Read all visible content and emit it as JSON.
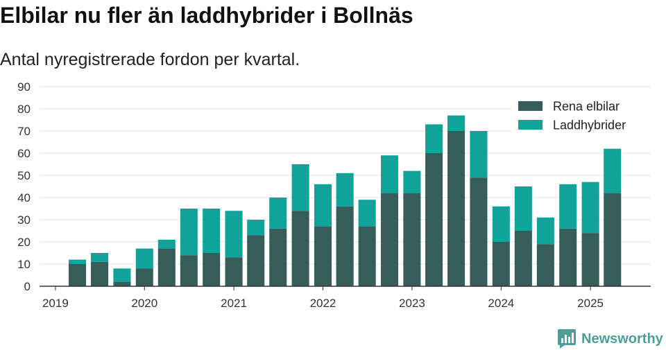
{
  "chart_data": {
    "type": "bar",
    "stacked": true,
    "title": "Elbilar nu fler än laddhybrider i Bollnäs",
    "subtitle": "Antal nyregistrerade fordon per kvartal.",
    "x": [
      "2019-04-01",
      "2019-07-01",
      "2019-10-01",
      "2020-01-01",
      "2020-04-01",
      "2020-07-01",
      "2020-10-01",
      "2021-01-01",
      "2021-04-01",
      "2021-07-01",
      "2021-10-01",
      "2022-01-01",
      "2022-04-01",
      "2022-07-01",
      "2022-10-01",
      "2023-01-01",
      "2023-04-01",
      "2023-07-01",
      "2023-10-01",
      "2024-01-01",
      "2024-04-01",
      "2024-07-01",
      "2024-10-01",
      "2025-01-01",
      "2025-04-01"
    ],
    "xlim": [
      "2018-10-28",
      "2025-09-05"
    ],
    "xticks": [
      {
        "date": "2019-01-01",
        "label": "2019"
      },
      {
        "date": "2020-01-01",
        "label": "2020"
      },
      {
        "date": "2021-01-01",
        "label": "2021"
      },
      {
        "date": "2022-01-01",
        "label": "2022"
      },
      {
        "date": "2023-01-01",
        "label": "2023"
      },
      {
        "date": "2024-01-01",
        "label": "2024"
      },
      {
        "date": "2025-01-01",
        "label": "2025"
      }
    ],
    "ylim": [
      0,
      90
    ],
    "yticks": [
      0,
      10,
      20,
      30,
      40,
      50,
      60,
      70,
      80,
      90
    ],
    "grid": true,
    "legend": "top-right",
    "series": [
      {
        "name": "Rena elbilar",
        "color": "#355e5b",
        "values": [
          10,
          11,
          2,
          8,
          17,
          14,
          15,
          13,
          23,
          26,
          34,
          27,
          36,
          27,
          42,
          42,
          60,
          70,
          49,
          20,
          25,
          19,
          26,
          24,
          42
        ]
      },
      {
        "name": "Laddhybrider",
        "color": "#10a39a",
        "values": [
          2,
          4,
          6,
          9,
          4,
          21,
          20,
          21,
          7,
          14,
          21,
          19,
          15,
          12,
          17,
          10,
          13,
          7,
          21,
          16,
          20,
          12,
          20,
          23,
          20
        ]
      }
    ]
  },
  "branding": {
    "logo_text": "Newsworthy",
    "logo_color": "#4d9d98",
    "logo_icon": "bar-chart-speech-bubble-icon"
  }
}
